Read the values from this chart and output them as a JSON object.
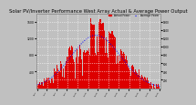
{
  "title": "Solar PV/Inverter Performance West Array Actual & Average Power Output",
  "title_fontsize": 3.8,
  "bg_color": "#c0c0c0",
  "plot_bg_color": "#c0c0c0",
  "bar_color": "#dd0000",
  "avg_line_color": "#0000ff",
  "grid_color": "#ffffff",
  "text_color": "#000000",
  "ylim": [
    0,
    1800
  ],
  "yticks_left": [
    400,
    800,
    1200,
    1600
  ],
  "yticks_right": [
    200,
    400,
    600,
    800,
    1000,
    1200,
    1400,
    1600
  ],
  "num_bars": 144,
  "legend_actual_color": "#dd0000",
  "legend_avg_color": "#0000ff",
  "legend_actual_label": "Actual Power",
  "legend_avg_label": "Average Power"
}
